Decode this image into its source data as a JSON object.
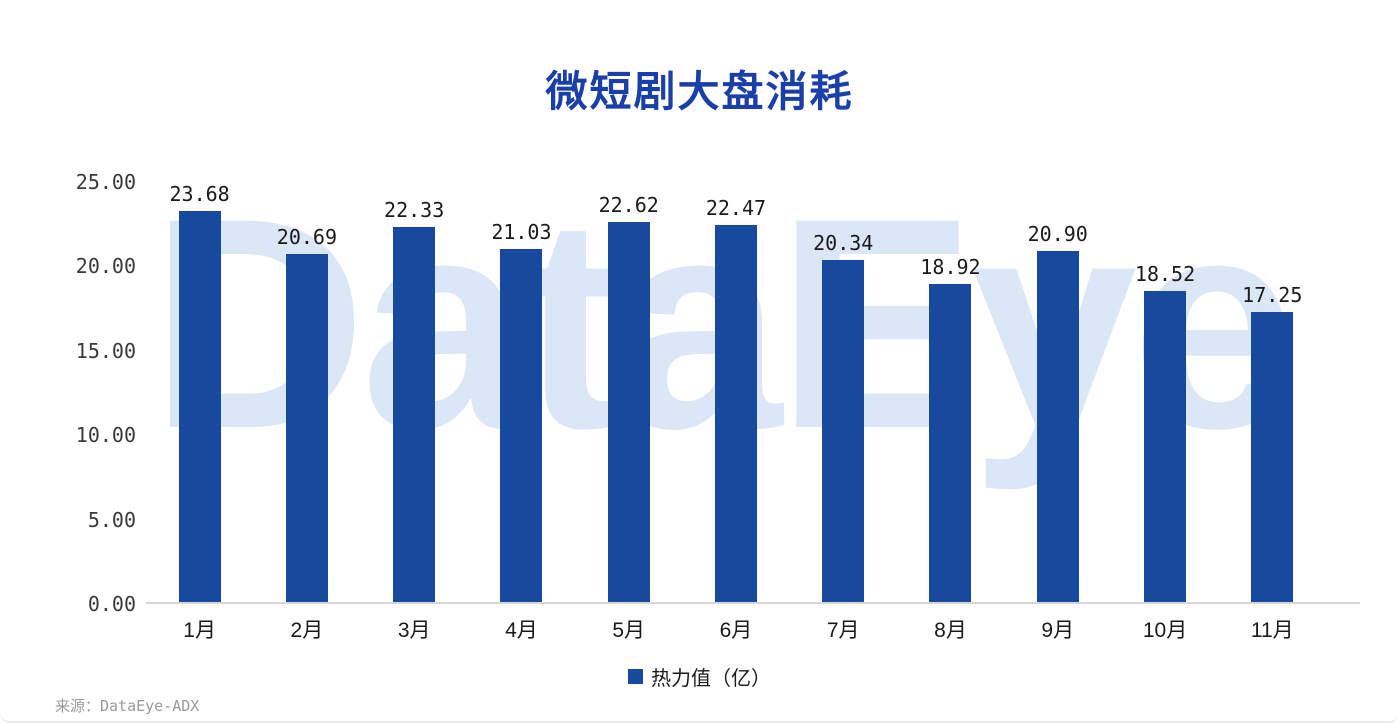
{
  "title": "微短剧大盘消耗",
  "watermark": "DataEye",
  "source": "来源：DataEye-ADX",
  "legend": {
    "label": "热力值（亿）"
  },
  "colors": {
    "bar": "#17499d",
    "title": "#1a3fa8",
    "watermark": "#dbe6f7",
    "axis_text": "#3a3a3a",
    "source_text": "#9a9a9a"
  },
  "chart_data": {
    "type": "bar",
    "title": "微短剧大盘消耗",
    "categories": [
      "1月",
      "2月",
      "3月",
      "4月",
      "5月",
      "6月",
      "7月",
      "8月",
      "9月",
      "10月",
      "11月"
    ],
    "values": [
      23.68,
      20.69,
      22.33,
      21.03,
      22.62,
      22.47,
      20.34,
      18.92,
      20.9,
      18.52,
      17.25
    ],
    "value_labels": [
      "23.68",
      "20.69",
      "22.33",
      "21.03",
      "22.62",
      "22.47",
      "20.34",
      "18.92",
      "20.90",
      "18.52",
      "17.25"
    ],
    "xlabel": "",
    "ylabel": "",
    "ylim": [
      0,
      25
    ],
    "yticks": [
      0,
      5,
      10,
      15,
      20,
      25
    ],
    "ytick_labels": [
      "0.00",
      "5.00",
      "10.00",
      "15.00",
      "20.00",
      "25.00"
    ],
    "grid": false,
    "legend": [
      "热力值（亿）"
    ],
    "legend_position": "bottom",
    "bar_color": "#17499d",
    "source": "来源：DataEye-ADX"
  }
}
